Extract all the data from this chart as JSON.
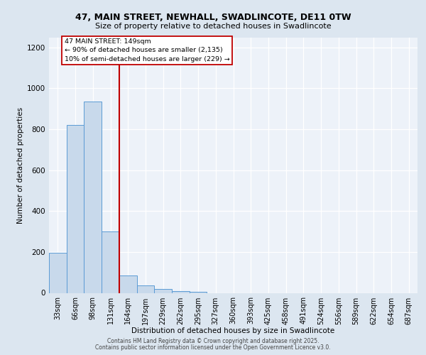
{
  "title_line1": "47, MAIN STREET, NEWHALL, SWADLINCOTE, DE11 0TW",
  "title_line2": "Size of property relative to detached houses in Swadlincote",
  "categories": [
    "33sqm",
    "66sqm",
    "98sqm",
    "131sqm",
    "164sqm",
    "197sqm",
    "229sqm",
    "262sqm",
    "295sqm",
    "327sqm",
    "360sqm",
    "393sqm",
    "425sqm",
    "458sqm",
    "491sqm",
    "524sqm",
    "556sqm",
    "589sqm",
    "622sqm",
    "654sqm",
    "687sqm"
  ],
  "values": [
    195,
    820,
    935,
    300,
    85,
    38,
    20,
    10,
    5,
    0,
    0,
    0,
    0,
    0,
    0,
    0,
    0,
    0,
    0,
    0,
    0
  ],
  "bar_color": "#c8d9eb",
  "bar_edge_color": "#5b9bd5",
  "vline_x": 3.5,
  "vline_color": "#c00000",
  "annotation_title": "47 MAIN STREET: 149sqm",
  "annotation_line1": "← 90% of detached houses are smaller (2,135)",
  "annotation_line2": "10% of semi-detached houses are larger (229) →",
  "annotation_box_color": "#ffffff",
  "annotation_box_edge": "#c00000",
  "xlabel": "Distribution of detached houses by size in Swadlincote",
  "ylabel": "Number of detached properties",
  "ylim": [
    0,
    1250
  ],
  "yticks": [
    0,
    200,
    400,
    600,
    800,
    1000,
    1200
  ],
  "footer_line1": "Contains HM Land Registry data © Crown copyright and database right 2025.",
  "footer_line2": "Contains public sector information licensed under the Open Government Licence v3.0.",
  "bg_color": "#dce6f0",
  "plot_bg_color": "#edf2f9",
  "grid_color": "#ffffff",
  "title_fontsize": 9,
  "subtitle_fontsize": 8,
  "axis_label_fontsize": 7.5,
  "tick_fontsize": 7,
  "footer_fontsize": 5.5,
  "annotation_fontsize": 6.8
}
